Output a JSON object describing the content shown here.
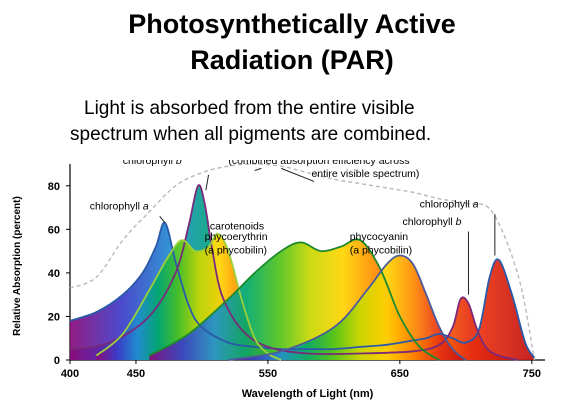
{
  "slide": {
    "title_line1": "Photosynthetically Active",
    "title_line2": "Radiation (PAR)",
    "subtitle_line1": "Light is absorbed from the entire visible",
    "subtitle_line2": "spectrum when all pigments are combined."
  },
  "chart_data": {
    "type": "area",
    "title": "",
    "xlabel": "Wavelength of Light (nm)",
    "ylabel": "Relative Absorption (percent)",
    "xlim": [
      400,
      760
    ],
    "ylim": [
      0,
      90
    ],
    "xticks": [
      "400",
      "450",
      "550",
      "650",
      "750"
    ],
    "xtick_values": [
      400,
      450,
      550,
      650,
      750
    ],
    "yticks": [
      "0",
      "20",
      "40",
      "60",
      "80"
    ],
    "ytick_values": [
      0,
      20,
      40,
      60,
      80
    ],
    "gradient_colors": [
      "#8a0a7a",
      "#3b3bc8",
      "#1f8fd0",
      "#00a86b",
      "#4cc21a",
      "#c8d800",
      "#ffd400",
      "#ff8c00",
      "#e83010",
      "#c01010"
    ],
    "series": [
      {
        "name": "combined absorption efficiency across entire visible spectrum",
        "style": "dashed",
        "color": "#b8b8b8",
        "x": [
          400,
          420,
          440,
          460,
          480,
          500,
          520,
          540,
          560,
          580,
          600,
          620,
          640,
          660,
          680,
          700,
          720,
          740,
          752
        ],
        "y": [
          33,
          38,
          55,
          68,
          80,
          86,
          89,
          90,
          89,
          86,
          83,
          81,
          79,
          77,
          74,
          72,
          68,
          38,
          0
        ]
      },
      {
        "name": "chlorophyll a",
        "color": "#2a5aa8",
        "x": [
          400,
          420,
          440,
          455,
          465,
          472,
          480,
          490,
          500,
          520,
          540,
          560,
          580,
          600,
          620,
          640,
          660,
          670,
          680,
          690,
          700,
          710,
          718,
          725,
          735,
          745,
          752
        ],
        "y": [
          18,
          22,
          30,
          40,
          52,
          63,
          45,
          25,
          15,
          8,
          6,
          5,
          5,
          5,
          6,
          7,
          9,
          10,
          12,
          10,
          8,
          14,
          38,
          46,
          30,
          8,
          1
        ]
      },
      {
        "name": "chlorophyll b",
        "color": "#7a2a7a",
        "x": [
          400,
          430,
          460,
          480,
          490,
          497,
          502,
          508,
          515,
          530,
          550,
          580,
          620,
          660,
          680,
          690,
          696,
          702,
          708,
          715,
          725,
          740
        ],
        "y": [
          5,
          8,
          20,
          40,
          62,
          80,
          72,
          50,
          30,
          14,
          6,
          3,
          3,
          4,
          7,
          15,
          28,
          26,
          15,
          6,
          2,
          0
        ]
      },
      {
        "name": "carotenoids",
        "color": "#9ad13a",
        "x": [
          420,
          440,
          460,
          475,
          485,
          495,
          505,
          512,
          520,
          530,
          540,
          550,
          560
        ],
        "y": [
          2,
          12,
          32,
          48,
          55,
          50,
          52,
          58,
          50,
          28,
          10,
          3,
          0
        ]
      },
      {
        "name": "phycoerythrin (a phycobilin)",
        "color": "#1e8a2e",
        "x": [
          460,
          490,
          520,
          540,
          560,
          575,
          590,
          605,
          620,
          635,
          650,
          665,
          680
        ],
        "y": [
          2,
          12,
          28,
          40,
          50,
          54,
          50,
          52,
          55,
          42,
          20,
          6,
          0
        ]
      },
      {
        "name": "phycocyanin (a phycobilin)",
        "color": "#4a5a9a",
        "x": [
          520,
          560,
          600,
          625,
          640,
          650,
          660,
          670,
          680,
          690,
          700
        ],
        "y": [
          0,
          4,
          15,
          32,
          44,
          48,
          44,
          30,
          15,
          5,
          0
        ]
      }
    ],
    "annotations": [
      {
        "text": "(combined absorption efficiency across",
        "x": 520,
        "y": 90
      },
      {
        "text": "entire visible spectrum)",
        "x": 583,
        "y": 84
      },
      {
        "text": "chlorophyll",
        "italic_suffix": "b",
        "x": 440,
        "y": 90
      },
      {
        "text": "chlorophyll",
        "italic_suffix": "a",
        "x": 415,
        "y": 69
      },
      {
        "text": "carotenoids",
        "x": 506,
        "y": 60
      },
      {
        "text": "phycoerythrin",
        "x": 502,
        "y": 55
      },
      {
        "text": "(a phycobilin)",
        "x": 502,
        "y": 49
      },
      {
        "text": "phycocyanin",
        "x": 612,
        "y": 55
      },
      {
        "text": "(a phycobilin)",
        "x": 612,
        "y": 49
      },
      {
        "text": "chlorophyll",
        "italic_suffix": "a",
        "x": 665,
        "y": 70
      },
      {
        "text": "chlorophyll",
        "italic_suffix": "b",
        "x": 652,
        "y": 62
      }
    ]
  }
}
